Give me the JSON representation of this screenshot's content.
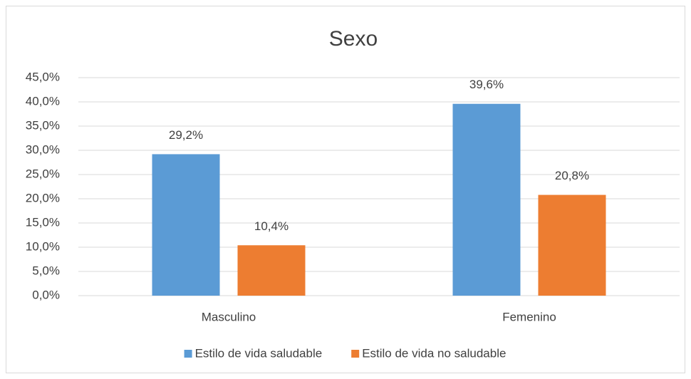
{
  "chart_data": {
    "type": "bar",
    "title": "Sexo",
    "categories": [
      "Masculino",
      "Femenino"
    ],
    "series": [
      {
        "name": "Estilo de vida saludable",
        "color": "#5b9bd5",
        "values": [
          29.2,
          39.6
        ],
        "value_labels": [
          "29,2%",
          "39,6%"
        ]
      },
      {
        "name": "Estilo de vida no saludable",
        "color": "#ed7d31",
        "values": [
          10.4,
          20.8
        ],
        "value_labels": [
          "10,4%",
          "20,8%"
        ]
      }
    ],
    "ylim": [
      0,
      45
    ],
    "yticks": [
      {
        "value": 0,
        "label": "0,0%"
      },
      {
        "value": 5,
        "label": "5,0%"
      },
      {
        "value": 10,
        "label": "10,0%"
      },
      {
        "value": 15,
        "label": "15,0%"
      },
      {
        "value": 20,
        "label": "20,0%"
      },
      {
        "value": 25,
        "label": "25,0%"
      },
      {
        "value": 30,
        "label": "30,0%"
      },
      {
        "value": 35,
        "label": "35,0%"
      },
      {
        "value": 40,
        "label": "40,0%"
      },
      {
        "value": 45,
        "label": "45,0%"
      }
    ],
    "grid": true,
    "legend": "bottom"
  }
}
